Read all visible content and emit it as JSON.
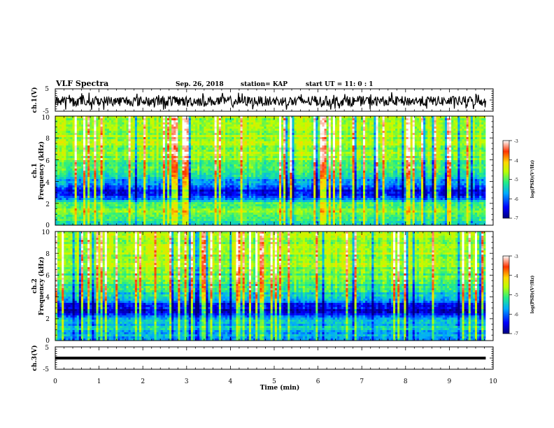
{
  "header": {
    "title": "VLF Spectra",
    "date": "Sep. 26, 2018",
    "station": "station= KAP",
    "start_ut": "start  UT =   11: 0  : 1"
  },
  "colors": {
    "background": "#ffffff",
    "axes": "#000000",
    "colormap": [
      "#00007f",
      "#0000ff",
      "#00aaff",
      "#22ee88",
      "#bbff00",
      "#ffd700",
      "#ff3300",
      "#ffffff"
    ]
  },
  "chart_data": [
    {
      "type": "line",
      "name": "ch1-waveform",
      "ylabel": "ch.1(V)",
      "xlim": [
        0,
        10
      ],
      "ylim": [
        -5,
        5
      ],
      "yticks": [
        "5",
        "-5"
      ],
      "t_end_min": 9.83,
      "description_values": {
        "level_v": -0.5,
        "amplitude_v": 2.5
      }
    },
    {
      "type": "heatmap",
      "name": "ch1-spectrogram",
      "ylabel": "ch.1\nFrequency (kHz)",
      "xlim": [
        0,
        10
      ],
      "ylim": [
        0,
        10
      ],
      "yticks": [
        "0",
        "2",
        "4",
        "6",
        "8",
        "10"
      ],
      "colorbar": {
        "label": "log(PSD)(V²/Hz)",
        "range": [
          -7,
          -3
        ],
        "ticks": [
          "-3",
          "-4",
          "-5",
          "-6",
          "-7"
        ]
      },
      "level_profile_by_khz": [
        [
          0,
          0.3
        ],
        [
          0.6,
          0.45
        ],
        [
          1.2,
          0.5
        ],
        [
          2.0,
          0.45
        ],
        [
          2.5,
          0.22
        ],
        [
          3.2,
          0.12
        ],
        [
          4.0,
          0.3
        ],
        [
          5.0,
          0.45
        ],
        [
          7.0,
          0.55
        ],
        [
          10.0,
          0.58
        ]
      ]
    },
    {
      "type": "heatmap",
      "name": "ch2-spectrogram",
      "ylabel": "ch.2\nFrequency (kHz)",
      "xlim": [
        0,
        10
      ],
      "ylim": [
        0,
        10
      ],
      "yticks": [
        "0",
        "2",
        "4",
        "6",
        "8",
        "10"
      ],
      "colorbar": {
        "label": "log(PSD)(V²/Hz)",
        "range": [
          -7,
          -3
        ],
        "ticks": [
          "-3",
          "-4",
          "-5",
          "-6",
          "-7"
        ]
      },
      "level_profile_by_khz": [
        [
          0,
          0.28
        ],
        [
          1.0,
          0.35
        ],
        [
          2.0,
          0.3
        ],
        [
          2.6,
          0.1
        ],
        [
          3.2,
          0.12
        ],
        [
          4.0,
          0.35
        ],
        [
          5.0,
          0.45
        ],
        [
          7.0,
          0.55
        ],
        [
          10.0,
          0.58
        ]
      ]
    },
    {
      "type": "line",
      "name": "ch3-waveform",
      "ylabel": "ch.3(V)",
      "xlim": [
        0,
        10
      ],
      "ylim": [
        -5,
        5
      ],
      "yticks": [
        "5",
        "0",
        "-5"
      ],
      "t_end_min": 9.83,
      "description_values": {
        "level_v": 0.0,
        "amplitude_v": 0.0
      }
    }
  ],
  "xaxis": {
    "label": "Time (min)",
    "ticks": [
      "0",
      "1",
      "2",
      "3",
      "4",
      "5",
      "6",
      "7",
      "8",
      "9",
      "10"
    ]
  }
}
